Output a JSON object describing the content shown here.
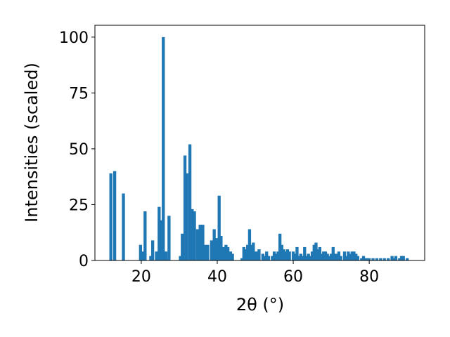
{
  "chart_data": {
    "type": "bar",
    "xlabel": "2θ (°)",
    "ylabel": "Intensities (scaled)",
    "color": "#1f77b4",
    "x": [
      12.0,
      13.0,
      15.3,
      19.8,
      20.4,
      21.0,
      22.5,
      23.0,
      24.0,
      24.7,
      25.3,
      25.8,
      26.5,
      27.3,
      30.3,
      30.8,
      31.5,
      32.0,
      32.8,
      33.4,
      34.0,
      34.8,
      35.5,
      36.2,
      36.8,
      37.5,
      38.5,
      39.2,
      39.8,
      40.5,
      41.0,
      41.7,
      42.3,
      42.8,
      43.5,
      44.0,
      46.5,
      47.0,
      47.5,
      48.0,
      48.5,
      49.0,
      49.5,
      50.0,
      50.5,
      51.0,
      52.0,
      52.5,
      53.0,
      53.5,
      54.5,
      55.0,
      55.5,
      56.0,
      56.5,
      57.0,
      57.5,
      58.0,
      58.5,
      59.0,
      60.0,
      60.5,
      61.0,
      61.5,
      62.0,
      62.5,
      63.0,
      63.5,
      64.0,
      64.5,
      65.0,
      65.5,
      66.0,
      66.5,
      67.0,
      67.5,
      68.0,
      68.5,
      69.0,
      69.5,
      70.0,
      70.5,
      71.0,
      71.5,
      72.0,
      72.5,
      73.5,
      74.0,
      74.5,
      75.0,
      75.5,
      76.0,
      76.5,
      77.0,
      78.0,
      78.5,
      79.0,
      79.5,
      80.0,
      81.0,
      82.0,
      83.0,
      84.0,
      85.0,
      86.0,
      86.5,
      87.0,
      88.0,
      88.5,
      89.0,
      90.0
    ],
    "values": [
      39,
      40,
      30,
      7,
      4,
      22,
      2,
      9,
      4,
      24,
      18,
      100,
      4,
      20,
      2,
      12,
      47,
      39,
      52,
      23,
      22,
      14,
      16,
      16,
      7,
      7,
      9,
      14,
      10,
      29,
      11,
      6,
      7,
      6,
      4,
      3,
      1,
      6,
      5,
      7,
      14,
      7,
      8,
      4,
      4,
      5,
      3,
      2,
      4,
      2,
      2,
      4,
      3,
      4,
      12,
      7,
      5,
      4,
      5,
      4,
      4,
      3,
      6,
      2,
      3,
      2,
      6,
      2,
      3,
      2,
      4,
      7,
      8,
      5,
      6,
      3,
      4,
      4,
      3,
      2,
      3,
      6,
      3,
      3,
      4,
      2,
      4,
      2,
      4,
      3,
      4,
      4,
      3,
      2,
      1,
      2,
      1,
      1,
      1,
      1,
      1,
      1,
      1,
      1,
      2,
      1,
      2,
      1,
      2,
      2,
      1
    ],
    "xlim": [
      7.8,
      94.6
    ],
    "ylim": [
      0,
      105.3
    ],
    "xticks": [
      20,
      40,
      60,
      80
    ],
    "yticks": [
      0,
      25,
      50,
      75,
      100
    ]
  }
}
